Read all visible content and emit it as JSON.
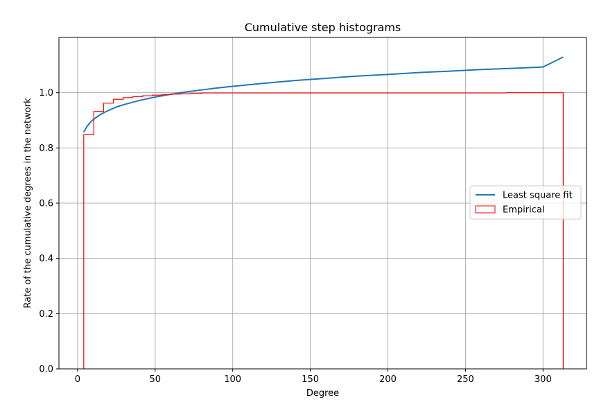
{
  "chart_data": {
    "type": "line",
    "title": "Cumulative step histograms",
    "xlabel": "Degree",
    "ylabel": "Rate of the cumulative degrees in the network",
    "xlim": [
      -12,
      328
    ],
    "ylim": [
      0.0,
      1.2
    ],
    "x_ticks": [
      0,
      50,
      100,
      150,
      200,
      250,
      300
    ],
    "y_ticks": [
      0.0,
      0.2,
      0.4,
      0.6,
      0.8,
      1.0
    ],
    "x_tick_labels": [
      "0",
      "50",
      "100",
      "150",
      "200",
      "250",
      "300"
    ],
    "y_tick_labels": [
      "0.0",
      "0.2",
      "0.4",
      "0.6",
      "0.8",
      "1.0"
    ],
    "grid": true,
    "legend": {
      "position": "center-right"
    },
    "series": [
      {
        "name": "Least square fit",
        "kind": "line",
        "color": "#1f77b4",
        "x": [
          4,
          6,
          8,
          10,
          15,
          20,
          25,
          30,
          40,
          50,
          60,
          70,
          80,
          90,
          100,
          120,
          140,
          160,
          180,
          200,
          220,
          240,
          260,
          280,
          300,
          313
        ],
        "y": [
          0.857,
          0.877,
          0.891,
          0.902,
          0.922,
          0.936,
          0.948,
          0.957,
          0.972,
          0.984,
          0.994,
          1.003,
          1.01,
          1.017,
          1.023,
          1.034,
          1.044,
          1.052,
          1.06,
          1.066,
          1.073,
          1.078,
          1.084,
          1.088,
          1.093,
          1.129
        ]
      },
      {
        "name": "Empirical",
        "kind": "step",
        "color": "#ff0000",
        "edges": [
          4,
          10.5,
          16.8,
          23.1,
          29.4,
          35.6,
          41.9,
          48.2,
          54.5,
          60.8,
          67.1,
          73.4,
          79.6,
          276.5,
          313
        ],
        "values": [
          0.848,
          0.932,
          0.962,
          0.976,
          0.982,
          0.986,
          0.989,
          0.991,
          0.993,
          0.995,
          0.996,
          0.997,
          0.999,
          1.0
        ]
      }
    ]
  }
}
